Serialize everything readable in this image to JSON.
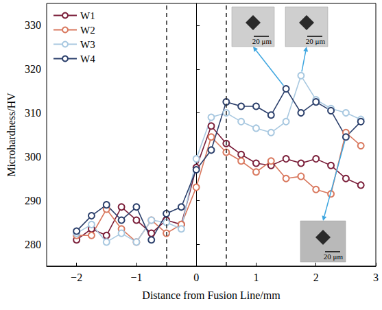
{
  "chart_data": {
    "type": "line",
    "x_label": "Distance from Fusion Line/mm",
    "y_label": "Microhardness/HV",
    "x": [
      -2,
      -1.75,
      -1.5,
      -1.25,
      -1,
      -0.75,
      -0.5,
      -0.25,
      0,
      0.25,
      0.5,
      0.75,
      1,
      1.25,
      1.5,
      1.75,
      2,
      2.25,
      2.5,
      2.75
    ],
    "series": [
      {
        "name": "W1",
        "color": "#7b1f3a",
        "marker": "circle",
        "values": [
          281,
          283.5,
          282,
          288.5,
          285.5,
          282.5,
          285.5,
          284.5,
          297.5,
          307,
          303,
          300.5,
          298.5,
          298,
          299.5,
          298.5,
          299.5,
          298,
          295,
          293.5
        ]
      },
      {
        "name": "W2",
        "color": "#d9785e",
        "marker": "circle",
        "values": [
          282,
          282,
          288,
          283.5,
          280.5,
          285.5,
          282.5,
          284.5,
          293,
          304.5,
          301,
          299,
          296.5,
          299,
          295,
          295.5,
          292.5,
          291.5,
          305.5,
          302.5
        ]
      },
      {
        "name": "W3",
        "color": "#a8c8e0",
        "marker": "circle",
        "values": [
          282.5,
          284.5,
          280.5,
          282.5,
          280.5,
          285.5,
          285,
          283.5,
          299.5,
          309,
          310,
          308,
          306.5,
          305.5,
          308,
          318.5,
          313,
          311,
          310,
          308.5
        ]
      },
      {
        "name": "W4",
        "color": "#2b3f6b",
        "marker": "circle",
        "values": [
          283,
          286.5,
          289,
          285.5,
          288.5,
          281,
          287,
          288.5,
          297,
          301.5,
          312.5,
          311.5,
          311.5,
          309.5,
          315.5,
          310,
          312.5,
          310.5,
          304.5,
          308
        ]
      }
    ],
    "xlim": [
      -2.5,
      3
    ],
    "xticks": [
      -2,
      -1,
      0,
      1,
      2,
      3
    ],
    "ylim": [
      275,
      335
    ],
    "yticks": [
      280,
      290,
      300,
      310,
      320,
      330
    ],
    "reference_lines_x": [
      -0.5,
      0.5
    ],
    "legend": "upper left",
    "grid": false,
    "annotations": [
      {
        "text": "20 μm",
        "series": "W4",
        "x": 1.5
      },
      {
        "text": "20 μm",
        "series": "W3",
        "x": 1.75
      },
      {
        "text": "20 μm",
        "series": "W4",
        "x": 2.5
      }
    ]
  }
}
